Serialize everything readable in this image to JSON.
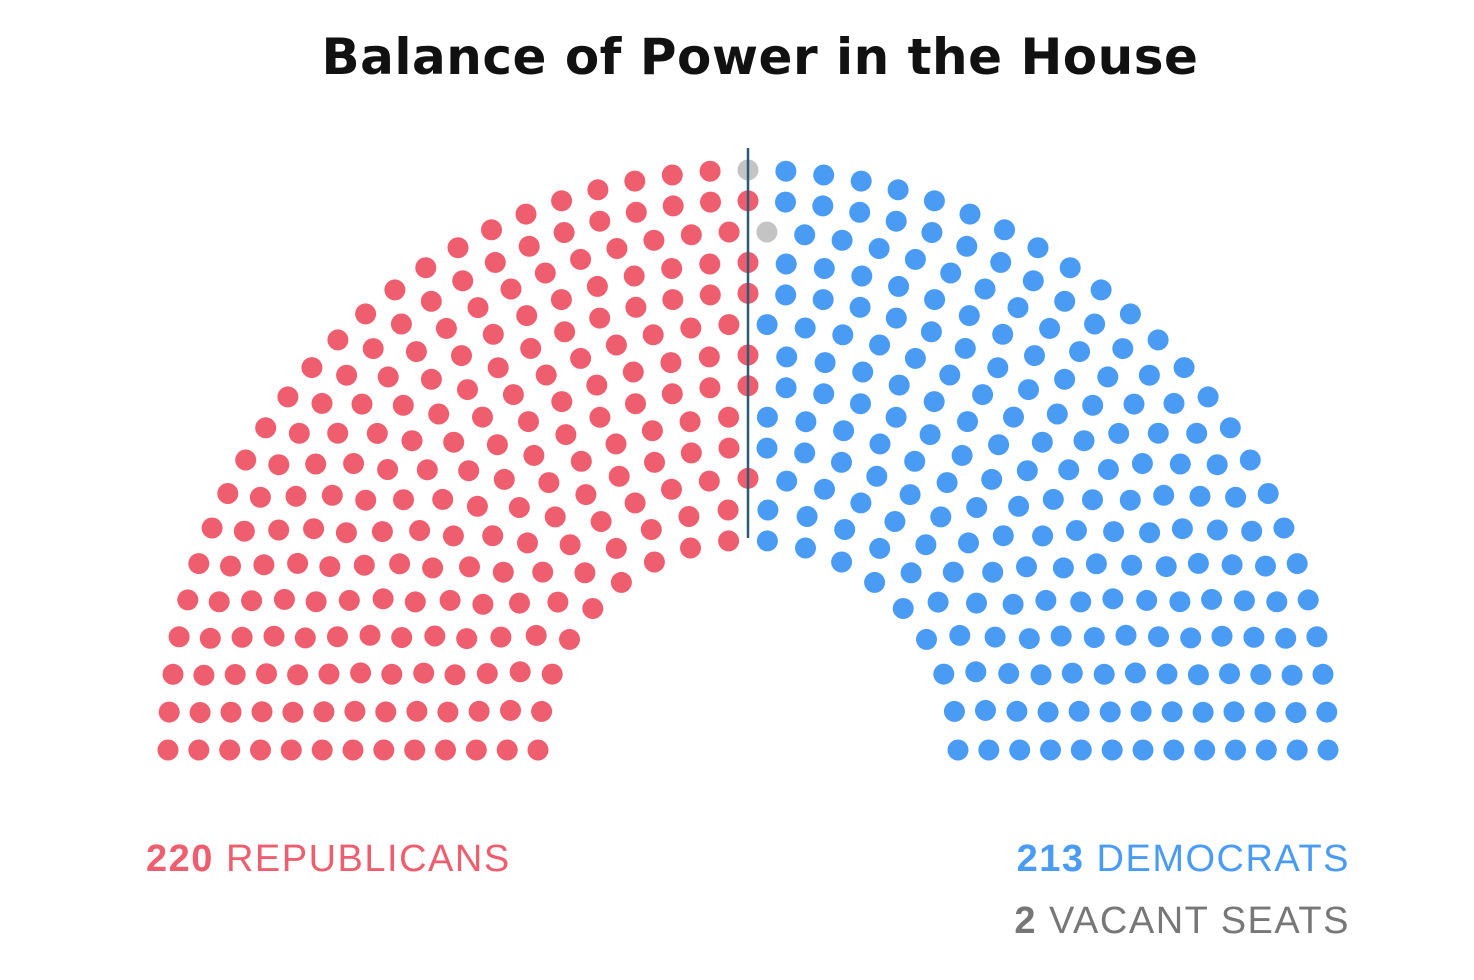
{
  "chart_data": {
    "type": "parliament",
    "title": "Balance of Power in the House",
    "total_seats": 435,
    "rows": 13,
    "series": [
      {
        "name": "REPUBLICANS",
        "value": 220,
        "color": "#EE5E6E"
      },
      {
        "name": "VACANT SEATS",
        "value": 2,
        "color": "#C4C4C4"
      },
      {
        "name": "DEMOCRATS",
        "value": 213,
        "color": "#4A9BF4"
      }
    ],
    "majority_line": true
  },
  "legend": {
    "republicans": {
      "count": "220",
      "label": "REPUBLICANS",
      "color": "#EE5E6E"
    },
    "democrats": {
      "count": "213",
      "label": "DEMOCRATS",
      "color": "#4A9BF4"
    },
    "vacant": {
      "count": "2",
      "label": "VACANT SEATS",
      "color": "#777777"
    }
  },
  "colors": {
    "divider": "#2C5A73"
  }
}
